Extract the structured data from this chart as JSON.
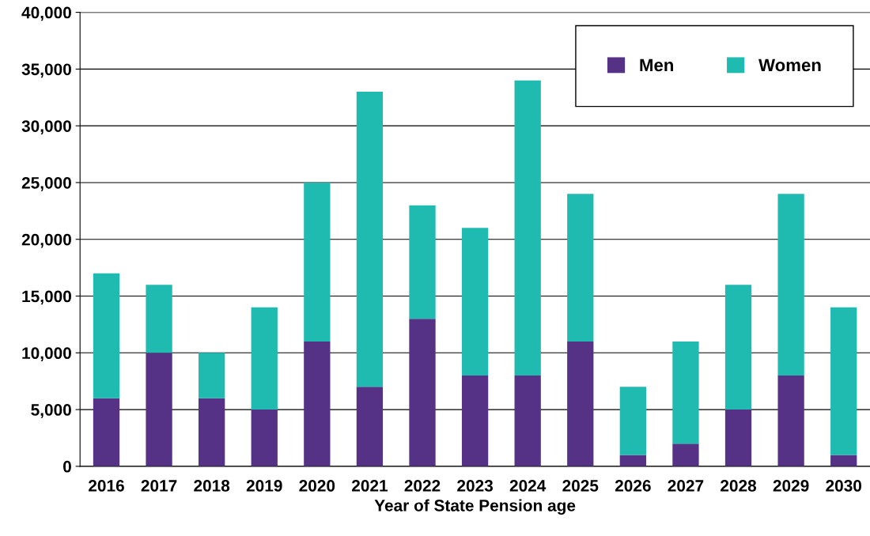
{
  "chart_data": {
    "type": "bar",
    "stacked": true,
    "xlabel": "Year of State Pension age",
    "categories": [
      "2016",
      "2017",
      "2018",
      "2019",
      "2020",
      "2021",
      "2022",
      "2023",
      "2024",
      "2025",
      "2026",
      "2027",
      "2028",
      "2029",
      "2030"
    ],
    "series": [
      {
        "name": "Men",
        "color": "#553285",
        "values": [
          6000,
          10000,
          6000,
          5000,
          11000,
          7000,
          13000,
          8000,
          8000,
          11000,
          1000,
          2000,
          5000,
          8000,
          1000
        ]
      },
      {
        "name": "Women",
        "color": "#20bbb0",
        "values": [
          11000,
          6000,
          4000,
          9000,
          14000,
          26000,
          10000,
          13000,
          26000,
          13000,
          6000,
          9000,
          11000,
          16000,
          13000
        ]
      }
    ],
    "ylim": [
      0,
      40000
    ],
    "yticks": [
      0,
      {
        "value": 5000,
        "label": "5,000"
      },
      {
        "value": 10000,
        "label": "10,000"
      },
      {
        "value": 15000,
        "label": "15,000"
      },
      {
        "value": 20000,
        "label": "20,000"
      },
      {
        "value": 25000,
        "label": "25,000"
      },
      {
        "value": 30000,
        "label": "30,000"
      },
      {
        "value": 35000,
        "label": "35,000"
      },
      {
        "value": 40000,
        "label": "40,000"
      }
    ],
    "grid": "y",
    "legend": "top right"
  }
}
